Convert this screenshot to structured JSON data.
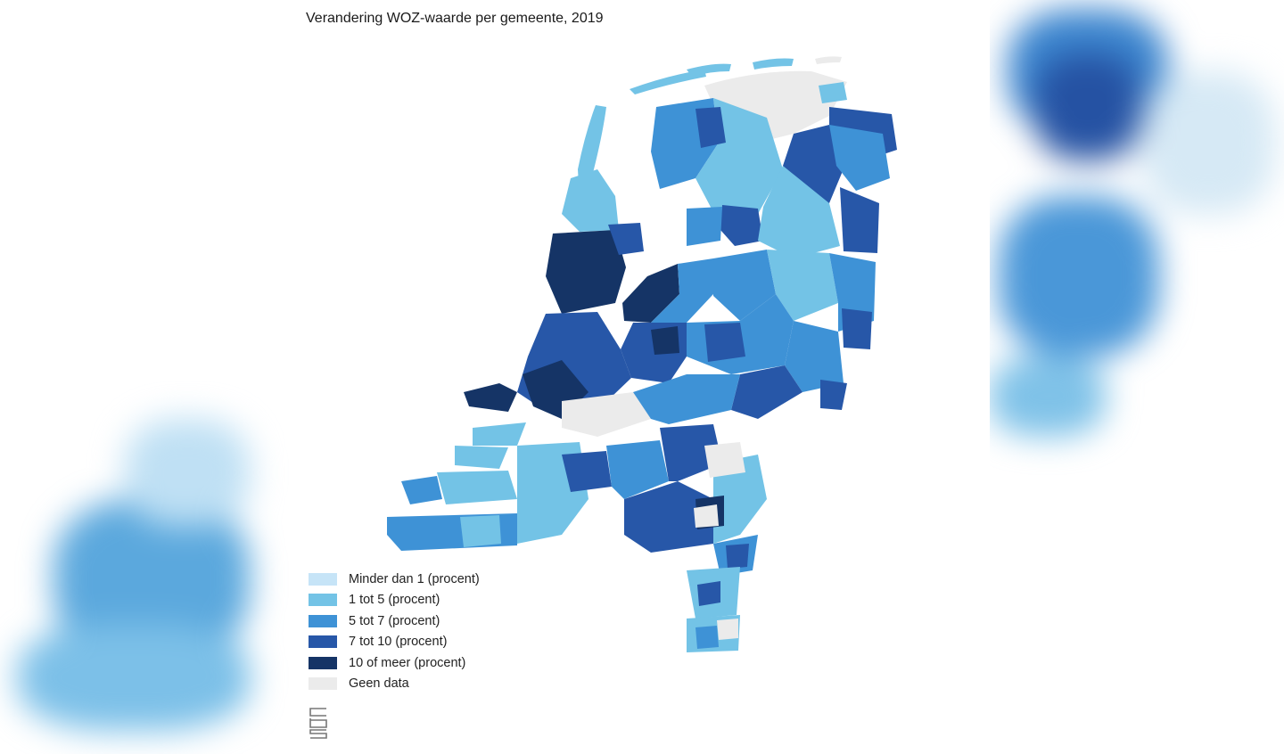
{
  "title": "Verandering WOZ-waarde per gemeente, 2019",
  "legend": [
    {
      "label": "Minder dan 1 (procent)",
      "color": "#c6e4f7"
    },
    {
      "label": "1 tot 5 (procent)",
      "color": "#73c3e6"
    },
    {
      "label": "5 tot 7 (procent)",
      "color": "#3e92d6"
    },
    {
      "label": "7 tot 10 (procent)",
      "color": "#2757a8"
    },
    {
      "label": "10 of meer (procent)",
      "color": "#153466"
    },
    {
      "label": "Geen data",
      "color": "#ebebeb"
    }
  ],
  "logo": {
    "text": "cbs",
    "icon": "cbs-logo-icon"
  }
}
